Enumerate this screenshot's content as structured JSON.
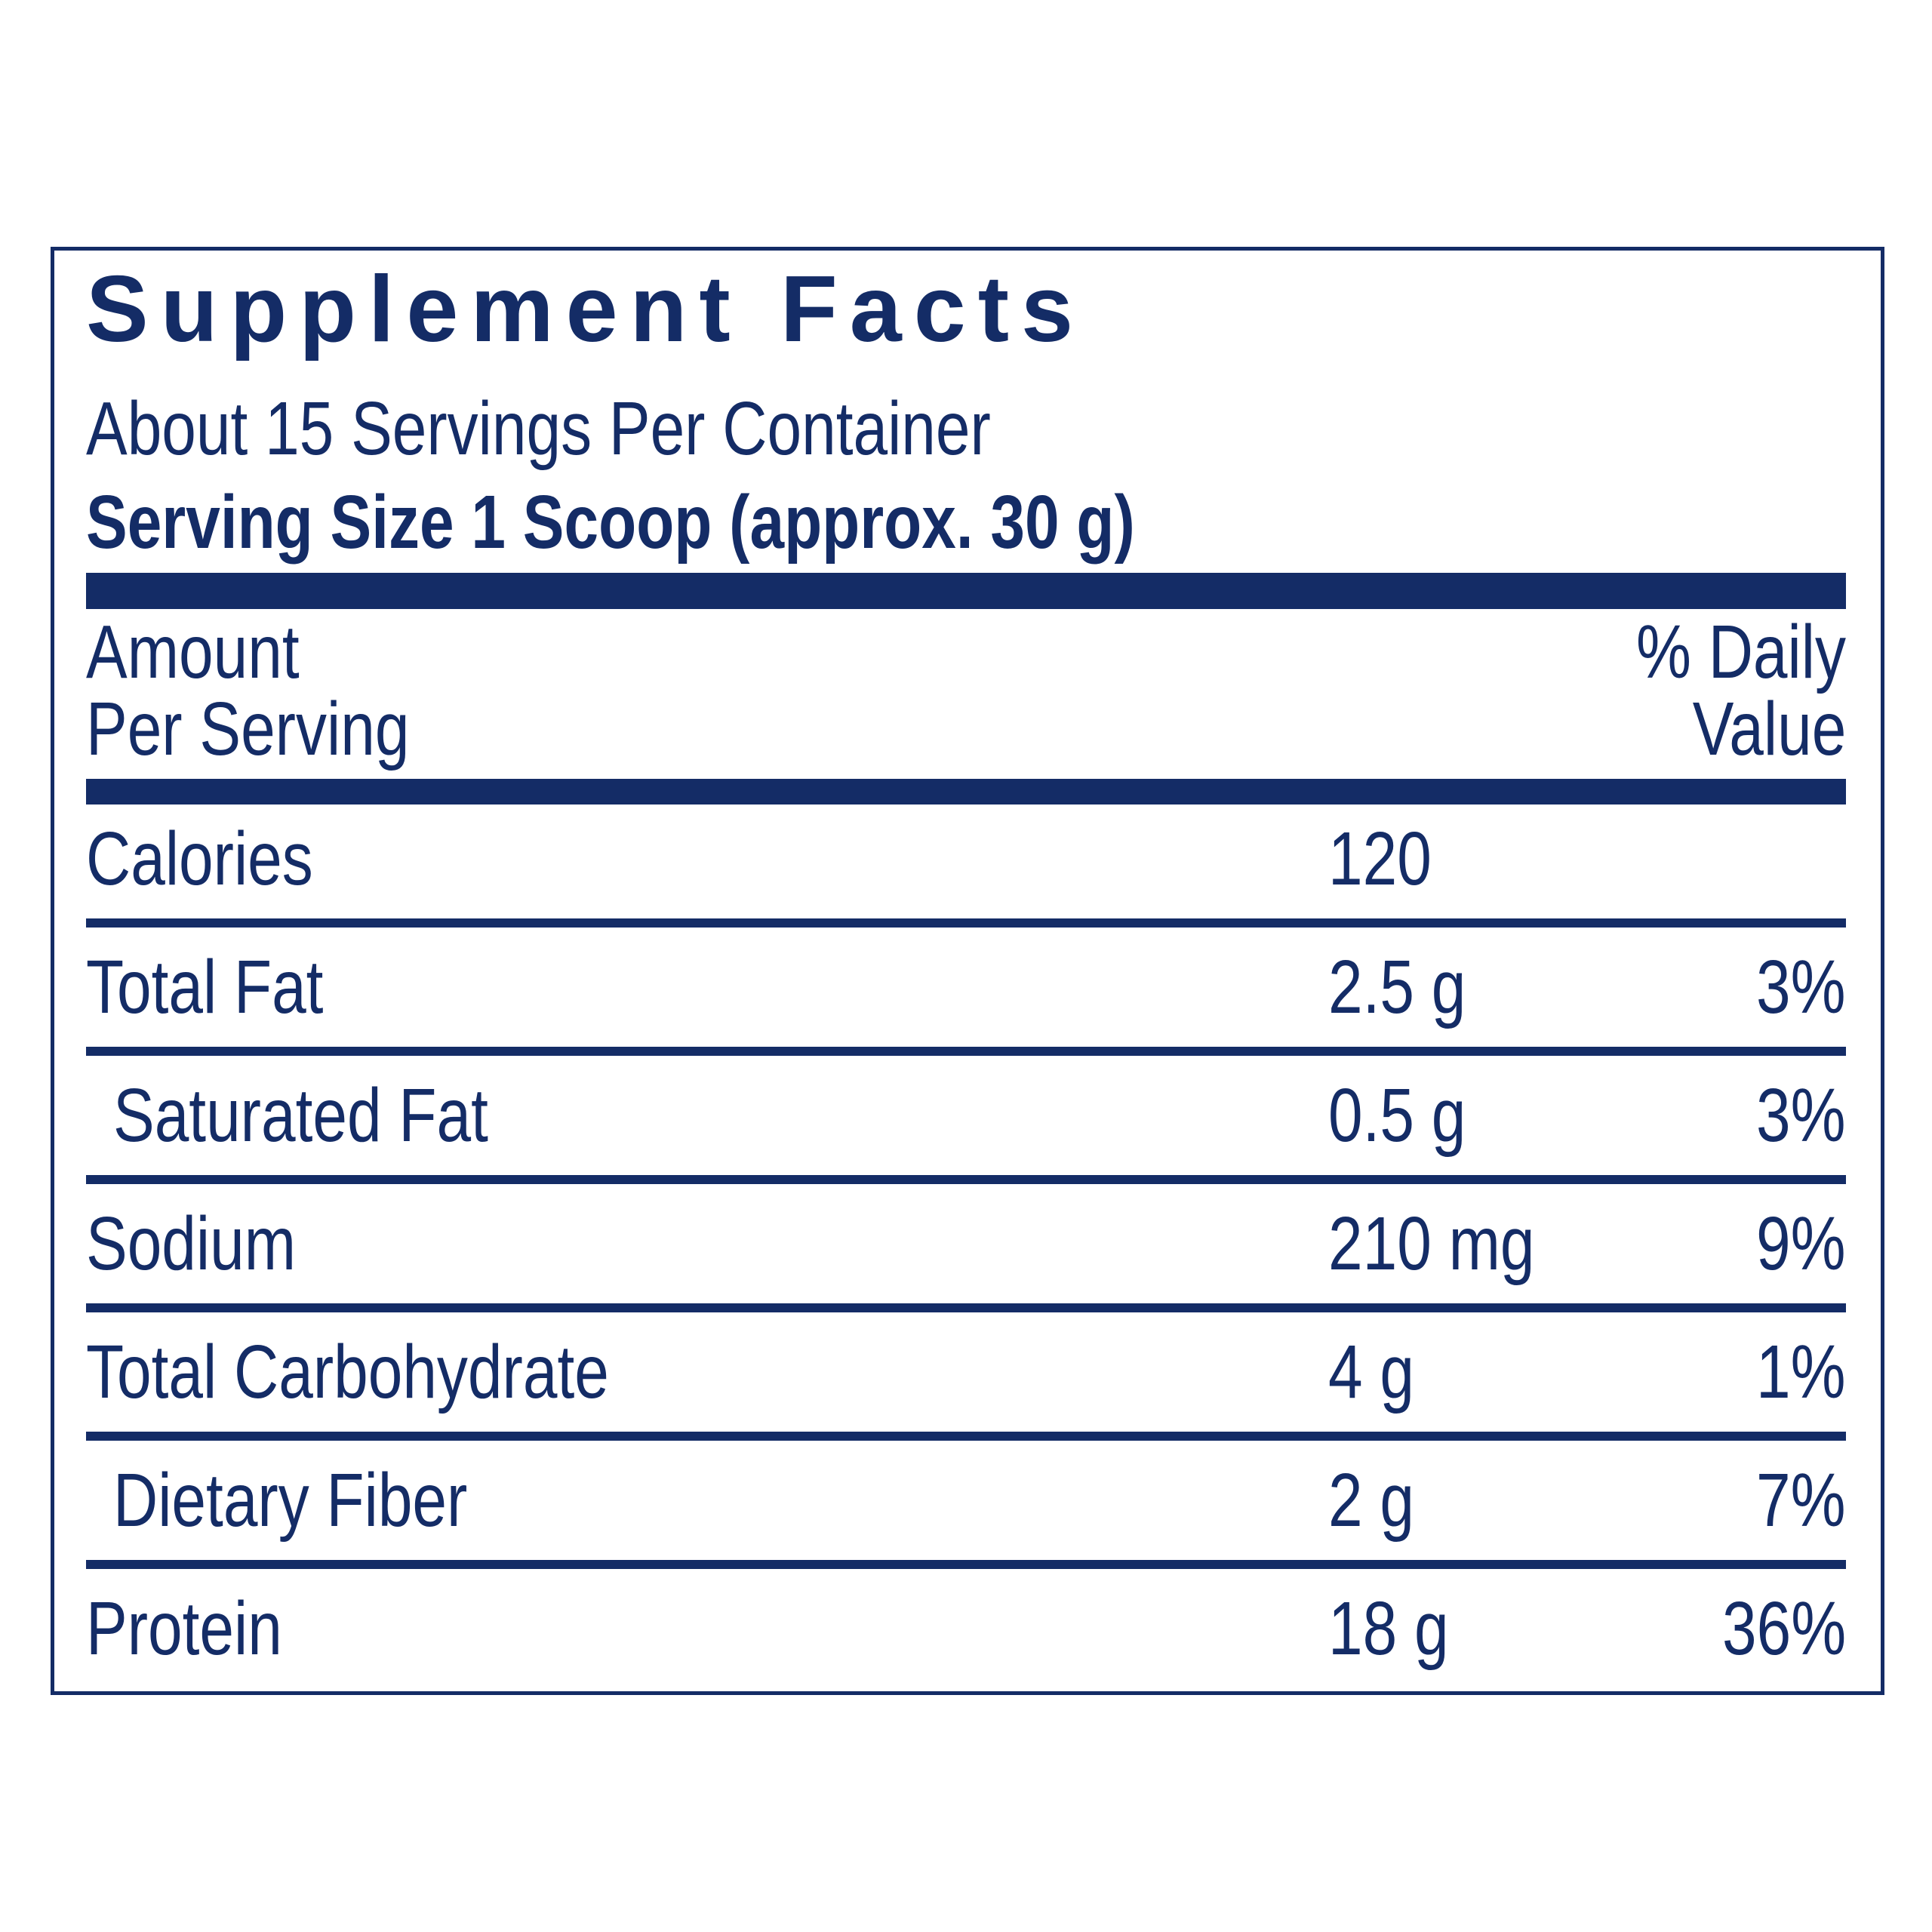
{
  "header": {
    "title": "Supplement Facts",
    "servings": "About 15 Servings Per Container",
    "serving_size": "Serving Size 1 Scoop (approx. 30 g)"
  },
  "columns": {
    "amount": [
      "Amount",
      "Per Serving"
    ],
    "daily_value": [
      "% Daily",
      "Value"
    ]
  },
  "table": {
    "rows": [
      {
        "name": "Calories",
        "amount": "120"
      },
      {
        "name": "Total Fat",
        "amount": "2.5 g",
        "daily_value": "3%"
      },
      {
        "name": "Saturated Fat",
        "amount": "0.5 g",
        "daily_value": "3%",
        "indent": true
      },
      {
        "name": "Sodium",
        "amount": "210 mg",
        "daily_value": "9%"
      },
      {
        "name": "Total Carbohydrate",
        "amount": "4 g",
        "daily_value": "1%"
      },
      {
        "name": "Dietary Fiber",
        "amount": "2 g",
        "daily_value": "7%",
        "indent": true
      },
      {
        "name": "Protein",
        "amount": "18 g",
        "daily_value": "36%"
      }
    ]
  }
}
